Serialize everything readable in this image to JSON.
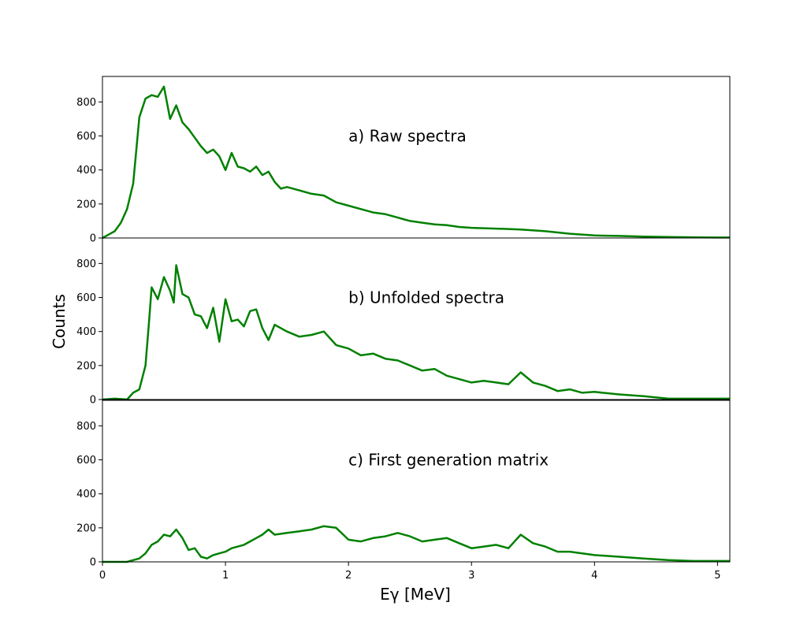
{
  "chart_data": {
    "type": "line",
    "xlabel": "Eγ [MeV]",
    "ylabel": "Counts",
    "xlim": [
      0,
      5.1
    ],
    "ylim": [
      0,
      950
    ],
    "xticks": [
      0,
      1,
      2,
      3,
      4,
      5
    ],
    "yticks": [
      0,
      200,
      400,
      600,
      800
    ],
    "line_color": "#008000",
    "grid": false,
    "panels": [
      {
        "label": "a) Raw spectra",
        "x": [
          0,
          0.05,
          0.1,
          0.15,
          0.2,
          0.25,
          0.3,
          0.35,
          0.4,
          0.45,
          0.5,
          0.55,
          0.6,
          0.65,
          0.7,
          0.75,
          0.8,
          0.85,
          0.9,
          0.95,
          1.0,
          1.05,
          1.1,
          1.15,
          1.2,
          1.25,
          1.3,
          1.35,
          1.4,
          1.45,
          1.5,
          1.6,
          1.7,
          1.8,
          1.9,
          2.0,
          2.1,
          2.2,
          2.3,
          2.4,
          2.5,
          2.6,
          2.7,
          2.8,
          2.9,
          3.0,
          3.2,
          3.4,
          3.6,
          3.8,
          4.0,
          4.2,
          4.4,
          4.6,
          4.8,
          5.0,
          5.1
        ],
        "y": [
          0,
          20,
          40,
          90,
          170,
          320,
          710,
          820,
          840,
          830,
          890,
          700,
          780,
          680,
          640,
          590,
          540,
          500,
          520,
          480,
          400,
          500,
          420,
          410,
          390,
          420,
          370,
          390,
          330,
          290,
          300,
          280,
          260,
          250,
          210,
          190,
          170,
          150,
          140,
          120,
          100,
          90,
          80,
          75,
          65,
          60,
          55,
          50,
          40,
          25,
          15,
          12,
          8,
          6,
          4,
          3,
          3
        ]
      },
      {
        "label": "b) Unfolded spectra",
        "x": [
          0,
          0.1,
          0.2,
          0.25,
          0.3,
          0.35,
          0.38,
          0.4,
          0.45,
          0.5,
          0.55,
          0.58,
          0.6,
          0.65,
          0.7,
          0.75,
          0.8,
          0.85,
          0.9,
          0.95,
          1.0,
          1.05,
          1.1,
          1.15,
          1.2,
          1.25,
          1.3,
          1.35,
          1.4,
          1.5,
          1.6,
          1.7,
          1.8,
          1.9,
          2.0,
          2.1,
          2.2,
          2.3,
          2.4,
          2.5,
          2.6,
          2.7,
          2.8,
          2.9,
          3.0,
          3.1,
          3.2,
          3.3,
          3.4,
          3.5,
          3.6,
          3.7,
          3.8,
          3.9,
          4.0,
          4.2,
          4.4,
          4.6,
          4.8,
          5.0,
          5.1
        ],
        "y": [
          0,
          5,
          0,
          40,
          60,
          200,
          470,
          660,
          590,
          720,
          640,
          570,
          790,
          620,
          600,
          500,
          490,
          420,
          540,
          340,
          590,
          460,
          470,
          430,
          520,
          530,
          420,
          350,
          440,
          400,
          370,
          380,
          400,
          320,
          300,
          260,
          270,
          240,
          230,
          200,
          170,
          180,
          140,
          120,
          100,
          110,
          100,
          90,
          160,
          100,
          80,
          50,
          60,
          40,
          45,
          30,
          20,
          5,
          5,
          5,
          5
        ]
      },
      {
        "label": "c) First generation matrix",
        "x": [
          0,
          0.1,
          0.2,
          0.25,
          0.3,
          0.35,
          0.4,
          0.45,
          0.5,
          0.55,
          0.6,
          0.65,
          0.7,
          0.75,
          0.8,
          0.85,
          0.9,
          0.95,
          1.0,
          1.05,
          1.1,
          1.15,
          1.2,
          1.25,
          1.3,
          1.35,
          1.4,
          1.5,
          1.6,
          1.7,
          1.8,
          1.9,
          2.0,
          2.1,
          2.2,
          2.3,
          2.4,
          2.5,
          2.6,
          2.7,
          2.8,
          2.9,
          3.0,
          3.1,
          3.2,
          3.3,
          3.4,
          3.5,
          3.6,
          3.7,
          3.8,
          3.9,
          4.0,
          4.2,
          4.4,
          4.6,
          4.8,
          5.0,
          5.1
        ],
        "y": [
          0,
          0,
          0,
          10,
          20,
          50,
          100,
          120,
          160,
          150,
          190,
          140,
          70,
          80,
          30,
          20,
          40,
          50,
          60,
          80,
          90,
          100,
          120,
          140,
          160,
          190,
          160,
          170,
          180,
          190,
          210,
          200,
          130,
          120,
          140,
          150,
          170,
          150,
          120,
          130,
          140,
          110,
          80,
          90,
          100,
          80,
          160,
          110,
          90,
          60,
          60,
          50,
          40,
          30,
          20,
          10,
          5,
          5,
          5
        ]
      }
    ]
  }
}
